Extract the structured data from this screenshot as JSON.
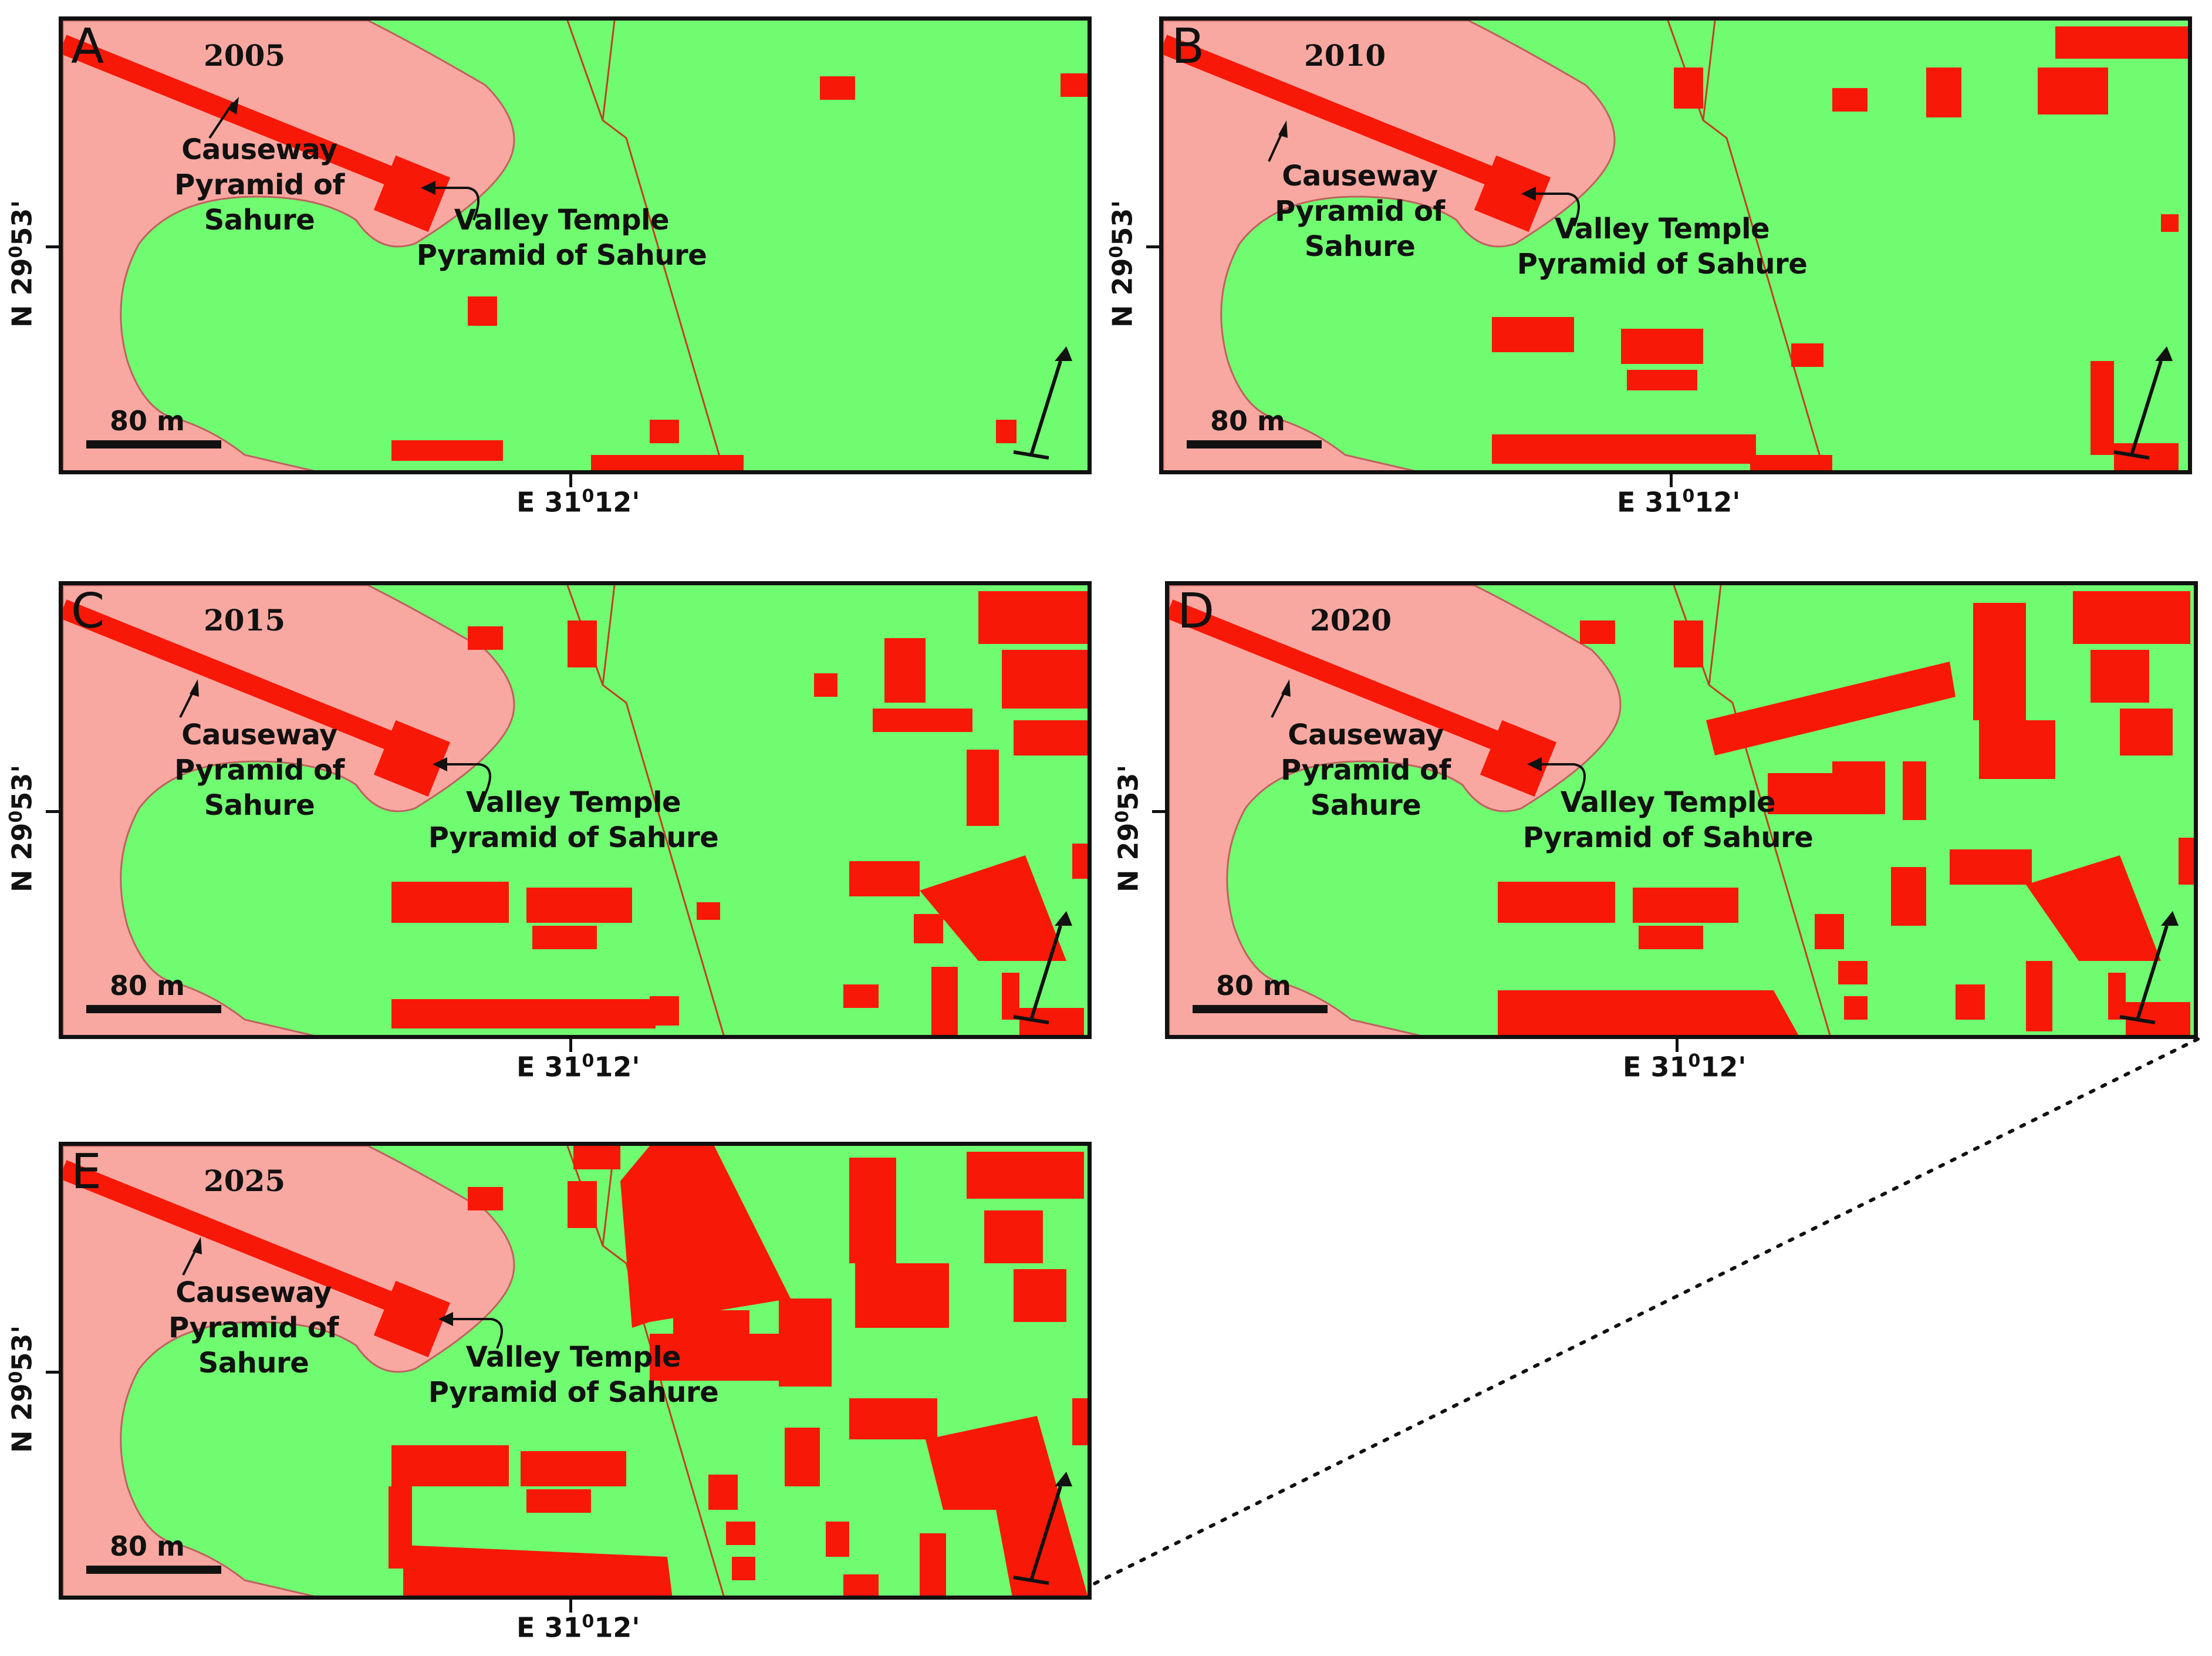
{
  "panels": [
    {
      "letter": "A",
      "year": "2005"
    },
    {
      "letter": "B",
      "year": "2010"
    },
    {
      "letter": "C",
      "year": "2015"
    },
    {
      "letter": "D",
      "year": "2020"
    },
    {
      "letter": "E",
      "year": "2025"
    }
  ],
  "labels": {
    "causeway_line1": "Causeway",
    "causeway_line2": "Pyramid of Sahure",
    "temple_line1": "Valley Temple",
    "temple_line2": "Pyramid of Sahure",
    "scale": "80 m",
    "lat_prefix": "N 29",
    "lat_deg": "0",
    "lat_min": "53'",
    "lon_prefix": "E 31",
    "lon_deg": "0",
    "lon_min": "12'"
  },
  "colors": {
    "background_green": "#70fc70",
    "plateau_pink": "#f8a8a0",
    "built_up_red": "#f81808",
    "road_line": "#c04020",
    "border": "#111111"
  },
  "icons": {
    "north_arrow": "north-arrow-icon",
    "pointer_arrow": "pointer-arrow-icon"
  }
}
